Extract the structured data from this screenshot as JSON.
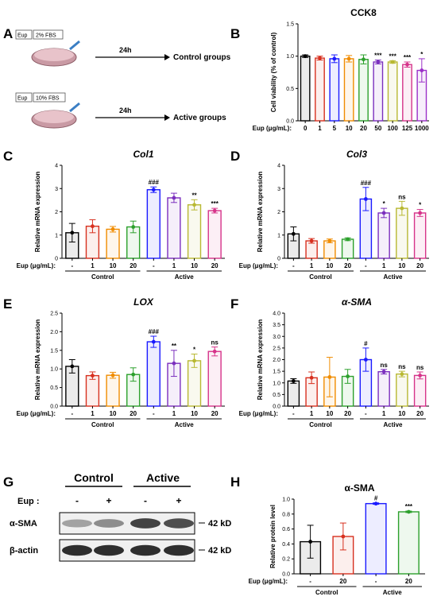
{
  "panels": {
    "A": {
      "letter": "A",
      "protocols": [
        {
          "label_eup": "Eup",
          "label_fbs": "2% FBS",
          "duration": "24h",
          "group": "Control groups"
        },
        {
          "label_eup": "Eup",
          "label_fbs": "10% FBS",
          "duration": "24h",
          "group": "Active groups"
        }
      ]
    },
    "G": {
      "letter": "G",
      "groups": [
        "Control",
        "Active"
      ],
      "row_label": "Eup :",
      "eup_marks": [
        "-",
        "+",
        "-",
        "+"
      ],
      "bands": [
        {
          "name": "α-SMA",
          "size": "42 kD",
          "intensity": [
            0.35,
            0.45,
            0.8,
            0.75
          ]
        },
        {
          "name": "β-actin",
          "size": "42 kD",
          "intensity": [
            0.9,
            0.9,
            0.9,
            0.9
          ]
        }
      ]
    }
  },
  "chart_data": [
    {
      "letter": "B",
      "type": "bar",
      "title": "CCK8",
      "ylabel": "Cell viability (% of control)",
      "xlabel": "Eup (μg/mL):",
      "categories": [
        "0",
        "1",
        "5",
        "10",
        "20",
        "50",
        "100",
        "125",
        "1000"
      ],
      "values": [
        1.0,
        0.97,
        0.96,
        0.96,
        0.95,
        0.91,
        0.91,
        0.87,
        0.78
      ],
      "errors": [
        0.02,
        0.03,
        0.06,
        0.05,
        0.07,
        0.03,
        0.02,
        0.04,
        0.18
      ],
      "significance": [
        "",
        "",
        "",
        "",
        "",
        "***",
        "***",
        "***",
        "*"
      ],
      "colors": [
        "#000000",
        "#d7301f",
        "#1a1aff",
        "#f08c00",
        "#2ca02c",
        "#7b2fbe",
        "#b8b832",
        "#d6338a",
        "#9b30c8"
      ],
      "ylim": [
        0,
        1.5
      ],
      "yticks": [
        "0.0",
        "0.5",
        "1.0",
        "1.5"
      ]
    },
    {
      "letter": "C",
      "type": "bar",
      "title": "Col1",
      "ylabel": "Relative mRNA expression",
      "xlabel": "Eup (μg/mL):",
      "categories": [
        "-",
        "1",
        "10",
        "20",
        "-",
        "1",
        "10",
        "20"
      ],
      "groups": [
        "Control",
        "Active"
      ],
      "values": [
        1.1,
        1.38,
        1.25,
        1.35,
        2.95,
        2.6,
        2.3,
        2.05
      ],
      "errors": [
        0.4,
        0.28,
        0.12,
        0.25,
        0.12,
        0.2,
        0.22,
        0.1
      ],
      "significance": [
        "",
        "",
        "",
        "",
        "###",
        "",
        "**",
        "***"
      ],
      "colors": [
        "#000000",
        "#d7301f",
        "#f08c00",
        "#2ca02c",
        "#1a1aff",
        "#7b2fbe",
        "#b8b832",
        "#d6338a"
      ],
      "ylim": [
        0,
        4
      ],
      "yticks": [
        "0",
        "1",
        "2",
        "3",
        "4"
      ]
    },
    {
      "letter": "D",
      "type": "bar",
      "title": "Col3",
      "ylabel": "Relative mRNA expression",
      "xlabel": "Eup (μg/mL):",
      "categories": [
        "-",
        "1",
        "10",
        "20",
        "-",
        "1",
        "10",
        "20"
      ],
      "groups": [
        "Control",
        "Active"
      ],
      "values": [
        1.05,
        0.75,
        0.75,
        0.82,
        2.55,
        1.95,
        2.15,
        1.95
      ],
      "errors": [
        0.3,
        0.1,
        0.08,
        0.06,
        0.5,
        0.2,
        0.3,
        0.15
      ],
      "significance": [
        "",
        "",
        "",
        "",
        "###",
        "*",
        "ns",
        "*"
      ],
      "colors": [
        "#000000",
        "#d7301f",
        "#f08c00",
        "#2ca02c",
        "#1a1aff",
        "#7b2fbe",
        "#b8b832",
        "#d6338a"
      ],
      "ylim": [
        0,
        4
      ],
      "yticks": [
        "0",
        "1",
        "2",
        "3",
        "4"
      ]
    },
    {
      "letter": "E",
      "type": "bar",
      "title": "LOX",
      "ylabel": "Relative mRNA expression",
      "xlabel": "Eup (μg/mL):",
      "categories": [
        "-",
        "1",
        "10",
        "20",
        "-",
        "1",
        "10",
        "20"
      ],
      "groups": [
        "Control",
        "Active"
      ],
      "values": [
        1.07,
        0.82,
        0.83,
        0.85,
        1.73,
        1.15,
        1.22,
        1.47
      ],
      "errors": [
        0.18,
        0.1,
        0.08,
        0.18,
        0.15,
        0.35,
        0.18,
        0.12
      ],
      "significance": [
        "",
        "",
        "",
        "",
        "###",
        "**",
        "*",
        "ns"
      ],
      "colors": [
        "#000000",
        "#d7301f",
        "#f08c00",
        "#2ca02c",
        "#1a1aff",
        "#7b2fbe",
        "#b8b832",
        "#d6338a"
      ],
      "ylim": [
        0,
        2.5
      ],
      "yticks": [
        "0.0",
        "0.5",
        "1.0",
        "1.5",
        "2.0",
        "2.5"
      ]
    },
    {
      "letter": "F",
      "type": "bar",
      "title": "α-SMA",
      "ylabel": "Relative mRNA expression",
      "xlabel": "Eup (μg/mL):",
      "categories": [
        "-",
        "1",
        "10",
        "20",
        "-",
        "1",
        "10",
        "20"
      ],
      "groups": [
        "Control",
        "Active"
      ],
      "values": [
        1.08,
        1.22,
        1.25,
        1.28,
        2.0,
        1.48,
        1.38,
        1.32
      ],
      "errors": [
        0.1,
        0.25,
        0.85,
        0.3,
        0.5,
        0.1,
        0.12,
        0.15
      ],
      "significance": [
        "",
        "",
        "",
        "",
        "#",
        "ns",
        "ns",
        "ns"
      ],
      "colors": [
        "#000000",
        "#d7301f",
        "#f08c00",
        "#2ca02c",
        "#1a1aff",
        "#7b2fbe",
        "#b8b832",
        "#d6338a"
      ],
      "ylim": [
        0,
        4
      ],
      "yticks": [
        "0.0",
        "0.5",
        "1.0",
        "1.5",
        "2.0",
        "2.5",
        "3.0",
        "3.5",
        "4.0"
      ]
    },
    {
      "letter": "H",
      "type": "bar",
      "title": "α-SMA",
      "ylabel": "Relative protein level",
      "xlabel": "Eup (μg/mL):",
      "categories": [
        "-",
        "20",
        "-",
        "20"
      ],
      "groups": [
        "Control",
        "Active"
      ],
      "values": [
        0.43,
        0.5,
        0.94,
        0.83
      ],
      "errors": [
        0.22,
        0.18,
        0.01,
        0.01
      ],
      "significance": [
        "",
        "",
        "#",
        "***"
      ],
      "colors": [
        "#000000",
        "#d7301f",
        "#1a1aff",
        "#2ca02c"
      ],
      "ylim": [
        0,
        1.0
      ],
      "yticks": [
        "0.0",
        "0.2",
        "0.4",
        "0.6",
        "0.8",
        "1.0"
      ]
    }
  ]
}
